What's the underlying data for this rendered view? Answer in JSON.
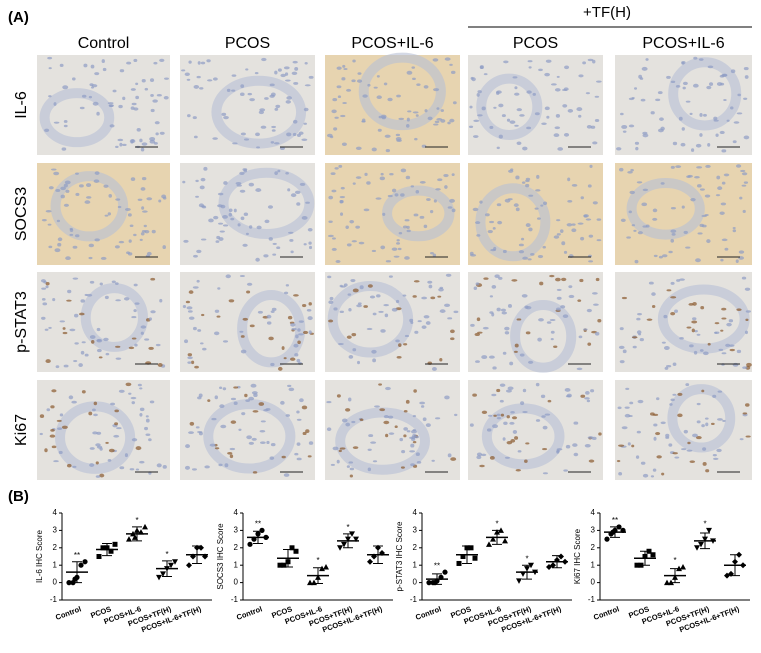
{
  "figure": {
    "panel_a_label": "(A)",
    "panel_b_label": "(B)",
    "group_label": "+TF(H)",
    "columns": [
      "Control",
      "PCOS",
      "PCOS+IL-6",
      "PCOS",
      "PCOS+IL-6"
    ],
    "rows": [
      "IL-6",
      "SOCS3",
      "p-STAT3",
      "Ki67"
    ]
  },
  "chart_data": [
    {
      "type": "dotplot",
      "y_label": "IL-6 IHC Score",
      "categories": [
        "Control",
        "PCOS",
        "PCOS+IL-6",
        "PCOS+TF(H)",
        "PCOS+IL-6+TF(H)"
      ],
      "points": [
        [
          0,
          0,
          0.3,
          1,
          1.2,
          0.2
        ],
        [
          1.5,
          2,
          2,
          1.8,
          2.2
        ],
        [
          2.5,
          2.8,
          3,
          2.9,
          3.2,
          2.6
        ],
        [
          0.3,
          0.5,
          0.8,
          1,
          1.2
        ],
        [
          1,
          1.5,
          2,
          2,
          1.5
        ]
      ],
      "means": [
        0.6,
        1.9,
        2.8,
        0.8,
        1.6
      ],
      "sd": [
        0.6,
        0.35,
        0.4,
        0.45,
        0.5
      ],
      "annotations": [
        "**",
        null,
        "*",
        "*",
        null
      ],
      "ylim": [
        -1,
        4
      ],
      "yticks": [
        -1,
        0,
        1,
        2,
        3,
        4
      ],
      "color": "#000000"
    },
    {
      "type": "dotplot",
      "y_label": "SOCS3 IHC Score",
      "categories": [
        "Control",
        "PCOS",
        "PCOS+IL-6",
        "PCOS+TF(H)",
        "PCOS+IL-6+TF(H)"
      ],
      "points": [
        [
          2.2,
          2.5,
          2.8,
          3,
          2.6
        ],
        [
          1,
          1,
          1.2,
          2,
          1.8
        ],
        [
          0,
          0,
          0.3,
          0.8,
          0.9
        ],
        [
          2,
          2.2,
          2.5,
          2.8,
          2.5
        ],
        [
          1.2,
          1.5,
          2,
          1.7
        ]
      ],
      "means": [
        2.6,
        1.4,
        0.4,
        2.4,
        1.6
      ],
      "sd": [
        0.35,
        0.5,
        0.45,
        0.4,
        0.5
      ],
      "annotations": [
        "**",
        null,
        "*",
        "*",
        null
      ],
      "ylim": [
        -1,
        4
      ],
      "yticks": [
        -1,
        0,
        1,
        2,
        3,
        4
      ],
      "color": "#000000"
    },
    {
      "type": "dotplot",
      "y_label": "p-STAT3 IHC Score",
      "categories": [
        "Control",
        "PCOS",
        "PCOS+IL-6",
        "PCOS+TF(H)",
        "PCOS+IL-6+TF(H)"
      ],
      "points": [
        [
          0,
          0,
          0.1,
          0.3,
          0.6,
          0
        ],
        [
          1.1,
          1.5,
          2,
          2,
          1.4
        ],
        [
          2.2,
          2.5,
          2.9,
          3,
          2.4
        ],
        [
          0.1,
          0.5,
          0.8,
          1,
          0.6
        ],
        [
          0.9,
          1,
          1.3,
          1.5,
          1.2
        ]
      ],
      "means": [
        0.2,
        1.6,
        2.6,
        0.6,
        1.2
      ],
      "sd": [
        0.3,
        0.5,
        0.4,
        0.4,
        0.35
      ],
      "annotations": [
        "**",
        null,
        "*",
        "*",
        null
      ],
      "ylim": [
        -1,
        4
      ],
      "yticks": [
        -1,
        0,
        1,
        2,
        3,
        4
      ],
      "color": "#000000"
    },
    {
      "type": "dotplot",
      "y_label": "Ki67 IHC Score",
      "categories": [
        "Control",
        "PCOS",
        "PCOS+IL-6",
        "PCOS+TF(H)",
        "PCOS+IL-6+TF(H)"
      ],
      "points": [
        [
          2.5,
          2.8,
          3,
          3.2,
          3,
          2.9
        ],
        [
          1,
          1,
          1.5,
          1.8,
          1.6
        ],
        [
          0,
          0,
          0.3,
          0.8,
          0.9
        ],
        [
          2,
          2.2,
          2.5,
          3,
          2.4
        ],
        [
          0.4,
          0.5,
          1.2,
          1.6,
          1
        ]
      ],
      "means": [
        2.9,
        1.4,
        0.4,
        2.4,
        1.0
      ],
      "sd": [
        0.3,
        0.4,
        0.4,
        0.45,
        0.6
      ],
      "annotations": [
        "**",
        null,
        "*",
        "*",
        null
      ],
      "ylim": [
        -1,
        4
      ],
      "yticks": [
        -1,
        0,
        1,
        2,
        3,
        4
      ],
      "color": "#000000"
    }
  ]
}
